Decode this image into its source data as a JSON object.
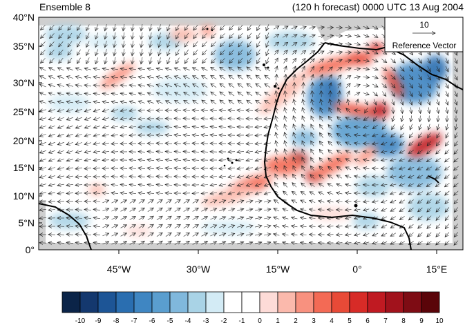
{
  "header": {
    "left_title": "Ensemble 8",
    "right_title": "(120 h forecast) 0000 UTC 13 Aug 2004"
  },
  "map": {
    "lat_labels": [
      "40°N",
      "35°N",
      "30°N",
      "25°N",
      "20°N",
      "15°N",
      "10°N",
      "5°N",
      "0°"
    ],
    "lon_labels": [
      "45°W",
      "30°W",
      "15°W",
      "0°",
      "15°E"
    ]
  },
  "reference_vector": {
    "value": "10",
    "label": "Reference Vector"
  },
  "colorbar": {
    "labels": [
      "-10",
      "-9",
      "-8",
      "-7",
      "-6",
      "-5",
      "-4",
      "-3",
      "-2",
      "-1",
      "0",
      "1",
      "2",
      "3",
      "4",
      "5",
      "6",
      "7",
      "8",
      "9",
      "10"
    ],
    "colors": [
      "#0b2448",
      "#14386e",
      "#1d5596",
      "#2a6eb0",
      "#3f86c2",
      "#5a9ecf",
      "#80b8dc",
      "#a9d3e6",
      "#d3ebf5",
      "#ffffff",
      "#ffffff",
      "#fddbd7",
      "#fbb9ac",
      "#f8917f",
      "#f36a55",
      "#e84a37",
      "#d72b27",
      "#c01a22",
      "#a1121c",
      "#7e0c14",
      "#5a0409"
    ]
  }
}
